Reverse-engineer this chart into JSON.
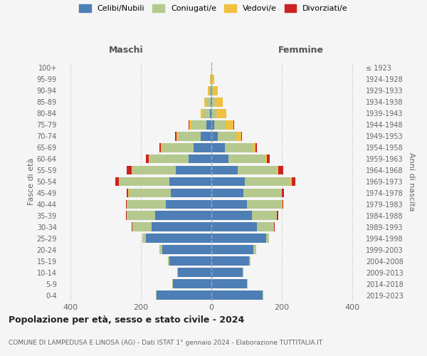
{
  "age_groups": [
    "0-4",
    "5-9",
    "10-14",
    "15-19",
    "20-24",
    "25-29",
    "30-34",
    "35-39",
    "40-44",
    "45-49",
    "50-54",
    "55-59",
    "60-64",
    "65-69",
    "70-74",
    "75-79",
    "80-84",
    "85-89",
    "90-94",
    "95-99",
    "100+"
  ],
  "years_right": [
    "2019-2023",
    "2014-2018",
    "2009-2013",
    "2004-2008",
    "1999-2003",
    "1994-1998",
    "1989-1993",
    "1984-1988",
    "1979-1983",
    "1974-1978",
    "1969-1973",
    "1964-1968",
    "1959-1963",
    "1954-1958",
    "1949-1953",
    "1944-1948",
    "1939-1943",
    "1934-1938",
    "1929-1933",
    "1924-1928",
    "≤ 1923"
  ],
  "maschi": {
    "celibi": [
      155,
      110,
      95,
      120,
      140,
      185,
      170,
      160,
      130,
      115,
      120,
      100,
      65,
      50,
      30,
      15,
      5,
      3,
      2,
      1,
      0
    ],
    "coniugati": [
      3,
      2,
      2,
      3,
      8,
      10,
      55,
      80,
      110,
      120,
      140,
      125,
      110,
      90,
      65,
      42,
      20,
      12,
      4,
      2,
      0
    ],
    "vedovi": [
      0,
      0,
      0,
      0,
      0,
      0,
      0,
      0,
      0,
      1,
      2,
      2,
      2,
      3,
      4,
      6,
      6,
      6,
      4,
      2,
      0
    ],
    "divorziati": [
      0,
      0,
      0,
      0,
      0,
      1,
      2,
      3,
      2,
      5,
      10,
      14,
      8,
      4,
      3,
      2,
      0,
      0,
      0,
      0,
      0
    ]
  },
  "femmine": {
    "nubili": [
      145,
      100,
      88,
      108,
      120,
      155,
      130,
      115,
      100,
      90,
      95,
      75,
      48,
      38,
      18,
      8,
      3,
      2,
      1,
      1,
      0
    ],
    "coniugate": [
      3,
      2,
      2,
      3,
      8,
      8,
      48,
      70,
      100,
      108,
      130,
      110,
      105,
      80,
      52,
      32,
      12,
      8,
      3,
      1,
      0
    ],
    "vedove": [
      0,
      0,
      0,
      0,
      0,
      0,
      0,
      1,
      1,
      2,
      3,
      5,
      5,
      8,
      14,
      22,
      28,
      22,
      14,
      7,
      2
    ],
    "divorziate": [
      0,
      0,
      0,
      0,
      0,
      1,
      2,
      3,
      2,
      5,
      10,
      14,
      8,
      4,
      3,
      2,
      0,
      0,
      0,
      0,
      0
    ]
  },
  "colors": {
    "celibi": "#4d7eb5",
    "coniugati": "#b5c98e",
    "vedovi": "#f0c040",
    "divorziati": "#cc2222"
  },
  "xlim": 430,
  "title": "Popolazione per età, sesso e stato civile - 2024",
  "subtitle": "COMUNE DI LAMPEDUSA E LINOSA (AG) - Dati ISTAT 1° gennaio 2024 - Elaborazione TUTTITALIA.IT",
  "ylabel_left": "Fasce di età",
  "ylabel_right": "Anni di nascita",
  "xlabel_left": "Maschi",
  "xlabel_right": "Femmine",
  "background_color": "#f5f5f5",
  "bar_height": 0.8
}
